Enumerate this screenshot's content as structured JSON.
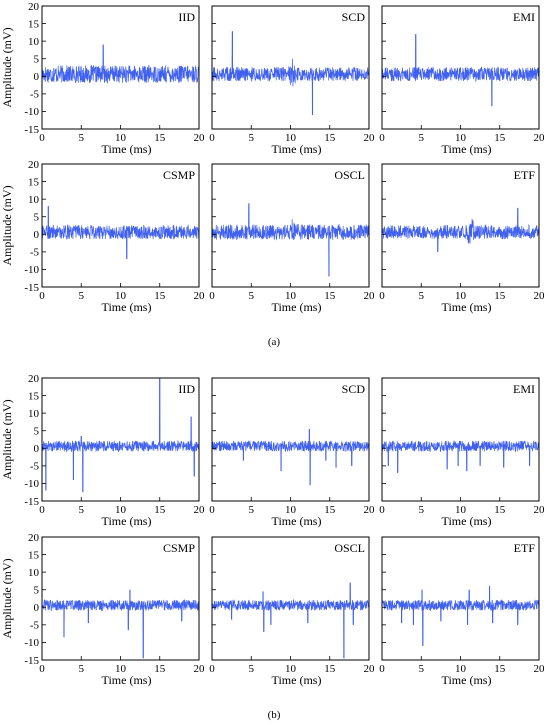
{
  "figure": {
    "sublabel_a": "(a)",
    "sublabel_b": "(b)"
  },
  "colors": {
    "signal": "#4060ee",
    "axis": "#000000"
  },
  "chart_data": [
    {
      "id": "a1",
      "group": "a",
      "type": "line",
      "panel_label": "IID",
      "xlabel": "Time (ms)",
      "ylabel": "Amplitude (mV)",
      "xlim": [
        0,
        20
      ],
      "ylim": [
        -15,
        20
      ],
      "xticks": [
        0,
        5,
        10,
        15,
        20
      ],
      "yticks": [
        -15,
        -10,
        -5,
        0,
        5,
        10,
        15,
        20
      ],
      "noise_amplitude": 2.5,
      "bump": null,
      "spikes": [
        {
          "x": 7.8,
          "y": 9.0
        }
      ]
    },
    {
      "id": "a2",
      "group": "a",
      "type": "line",
      "panel_label": "SCD",
      "xlabel": "Time (ms)",
      "ylabel": "",
      "xlim": [
        0,
        20
      ],
      "ylim": [
        -15,
        20
      ],
      "xticks": [
        0,
        5,
        10,
        15,
        20
      ],
      "yticks": [
        -15,
        -10,
        -5,
        0,
        5,
        10,
        15,
        20
      ],
      "noise_amplitude": 2.0,
      "bump": {
        "x": 10.2,
        "amplitude": 4.5
      },
      "spikes": [
        {
          "x": 2.6,
          "y": 12.8
        },
        {
          "x": 12.8,
          "y": -11.0
        }
      ]
    },
    {
      "id": "a3",
      "group": "a",
      "type": "line",
      "panel_label": "EMI",
      "xlabel": "Time (ms)",
      "ylabel": "",
      "xlim": [
        0,
        20
      ],
      "ylim": [
        -15,
        20
      ],
      "xticks": [
        0,
        5,
        10,
        15,
        20
      ],
      "yticks": [
        -15,
        -10,
        -5,
        0,
        5,
        10,
        15,
        20
      ],
      "noise_amplitude": 2.0,
      "bump": null,
      "spikes": [
        {
          "x": 4.3,
          "y": 12.0
        },
        {
          "x": 14.0,
          "y": -8.5
        }
      ]
    },
    {
      "id": "a4",
      "group": "a",
      "type": "line",
      "panel_label": "CSMP",
      "xlabel": "Time (ms)",
      "ylabel": "Amplitude (mV)",
      "xlim": [
        0,
        20
      ],
      "ylim": [
        -15,
        20
      ],
      "xticks": [
        0,
        5,
        10,
        15,
        20
      ],
      "yticks": [
        -15,
        -10,
        -5,
        0,
        5,
        10,
        15,
        20
      ],
      "noise_amplitude": 2.0,
      "bump": null,
      "spikes": [
        {
          "x": 0.8,
          "y": 8.0
        },
        {
          "x": 10.8,
          "y": -7.0
        }
      ]
    },
    {
      "id": "a5",
      "group": "a",
      "type": "line",
      "panel_label": "OSCL",
      "xlabel": "Time (ms)",
      "ylabel": "",
      "xlim": [
        0,
        20
      ],
      "ylim": [
        -15,
        20
      ],
      "xticks": [
        0,
        5,
        10,
        15,
        20
      ],
      "yticks": [
        -15,
        -10,
        -5,
        0,
        5,
        10,
        15,
        20
      ],
      "noise_amplitude": 2.2,
      "bump": {
        "x": 10.3,
        "amplitude": 2.0
      },
      "spikes": [
        {
          "x": 4.7,
          "y": 8.8
        },
        {
          "x": 14.9,
          "y": -12.0
        }
      ]
    },
    {
      "id": "a6",
      "group": "a",
      "type": "line",
      "panel_label": "ETF",
      "xlabel": "Time (ms)",
      "ylabel": "",
      "xlim": [
        0,
        20
      ],
      "ylim": [
        -15,
        20
      ],
      "xticks": [
        0,
        5,
        10,
        15,
        20
      ],
      "yticks": [
        -15,
        -10,
        -5,
        0,
        5,
        10,
        15,
        20
      ],
      "noise_amplitude": 2.0,
      "bump": {
        "x": 11.3,
        "amplitude": 3.0
      },
      "spikes": [
        {
          "x": 17.3,
          "y": 7.5
        },
        {
          "x": 7.1,
          "y": -5.0
        }
      ]
    },
    {
      "id": "b1",
      "group": "b",
      "type": "line",
      "panel_label": "IID",
      "xlabel": "Time (ms)",
      "ylabel": "Amplitude (mV)",
      "xlim": [
        0,
        20
      ],
      "ylim": [
        -15,
        20
      ],
      "xticks": [
        0,
        5,
        10,
        15,
        20
      ],
      "yticks": [
        -15,
        -10,
        -5,
        0,
        5,
        10,
        15,
        20
      ],
      "noise_amplitude": 1.5,
      "bump": null,
      "spikes": [
        {
          "x": 0.5,
          "y": -12.0
        },
        {
          "x": 4.0,
          "y": -9.0
        },
        {
          "x": 5.2,
          "y": -12.5
        },
        {
          "x": 5.0,
          "y": 3.5
        },
        {
          "x": 15.0,
          "y": 20.0
        },
        {
          "x": 19.0,
          "y": 9.0
        },
        {
          "x": 19.4,
          "y": -8.0
        }
      ]
    },
    {
      "id": "b2",
      "group": "b",
      "type": "line",
      "panel_label": "SCD",
      "xlabel": "Time (ms)",
      "ylabel": "",
      "xlim": [
        0,
        20
      ],
      "ylim": [
        -15,
        20
      ],
      "xticks": [
        0,
        5,
        10,
        15,
        20
      ],
      "yticks": [
        -15,
        -10,
        -5,
        0,
        5,
        10,
        15,
        20
      ],
      "noise_amplitude": 1.5,
      "bump": null,
      "spikes": [
        {
          "x": 4.0,
          "y": -3.5
        },
        {
          "x": 8.8,
          "y": -6.5
        },
        {
          "x": 12.4,
          "y": 5.5
        },
        {
          "x": 12.5,
          "y": -10.5
        },
        {
          "x": 14.5,
          "y": -3.5
        },
        {
          "x": 15.8,
          "y": -5.5
        },
        {
          "x": 17.8,
          "y": -5.0
        }
      ]
    },
    {
      "id": "b3",
      "group": "b",
      "type": "line",
      "panel_label": "EMI",
      "xlabel": "Time (ms)",
      "ylabel": "",
      "xlim": [
        0,
        20
      ],
      "ylim": [
        -15,
        20
      ],
      "xticks": [
        0,
        5,
        10,
        15,
        20
      ],
      "yticks": [
        -15,
        -10,
        -5,
        0,
        5,
        10,
        15,
        20
      ],
      "noise_amplitude": 1.5,
      "bump": null,
      "spikes": [
        {
          "x": 0.8,
          "y": -5.0
        },
        {
          "x": 2.0,
          "y": -7.0
        },
        {
          "x": 8.3,
          "y": -6.0
        },
        {
          "x": 9.7,
          "y": -5.0
        },
        {
          "x": 10.8,
          "y": -6.5
        },
        {
          "x": 12.5,
          "y": -5.0
        },
        {
          "x": 15.5,
          "y": -5.5
        },
        {
          "x": 18.8,
          "y": -5.0
        }
      ]
    },
    {
      "id": "b4",
      "group": "b",
      "type": "line",
      "panel_label": "CSMP",
      "xlabel": "Time (ms)",
      "ylabel": "Amplitude (mV)",
      "xlim": [
        0,
        20
      ],
      "ylim": [
        -15,
        20
      ],
      "xticks": [
        0,
        5,
        10,
        15,
        20
      ],
      "yticks": [
        -15,
        -10,
        -5,
        0,
        5,
        10,
        15,
        20
      ],
      "noise_amplitude": 1.5,
      "bump": null,
      "spikes": [
        {
          "x": 2.8,
          "y": -8.5
        },
        {
          "x": 5.9,
          "y": -4.5
        },
        {
          "x": 11.2,
          "y": 5.0
        },
        {
          "x": 11.0,
          "y": -6.5
        },
        {
          "x": 12.9,
          "y": -14.5
        },
        {
          "x": 17.8,
          "y": -4.0
        }
      ]
    },
    {
      "id": "b5",
      "group": "b",
      "type": "line",
      "panel_label": "OSCL",
      "xlabel": "Time (ms)",
      "ylabel": "",
      "xlim": [
        0,
        20
      ],
      "ylim": [
        -15,
        20
      ],
      "xticks": [
        0,
        5,
        10,
        15,
        20
      ],
      "yticks": [
        -15,
        -10,
        -5,
        0,
        5,
        10,
        15,
        20
      ],
      "noise_amplitude": 1.5,
      "bump": null,
      "spikes": [
        {
          "x": 2.5,
          "y": -3.5
        },
        {
          "x": 6.5,
          "y": 4.5
        },
        {
          "x": 6.6,
          "y": -7.0
        },
        {
          "x": 7.5,
          "y": -5.0
        },
        {
          "x": 12.2,
          "y": -4.5
        },
        {
          "x": 16.8,
          "y": -14.5
        },
        {
          "x": 17.6,
          "y": 7.0
        },
        {
          "x": 18.0,
          "y": -5.0
        }
      ]
    },
    {
      "id": "b6",
      "group": "b",
      "type": "line",
      "panel_label": "ETF",
      "xlabel": "Time (ms)",
      "ylabel": "",
      "xlim": [
        0,
        20
      ],
      "ylim": [
        -15,
        20
      ],
      "xticks": [
        0,
        5,
        10,
        15,
        20
      ],
      "yticks": [
        -15,
        -10,
        -5,
        0,
        5,
        10,
        15,
        20
      ],
      "noise_amplitude": 1.5,
      "bump": null,
      "spikes": [
        {
          "x": 2.5,
          "y": -4.5
        },
        {
          "x": 4.0,
          "y": -5.0
        },
        {
          "x": 5.1,
          "y": 5.0
        },
        {
          "x": 5.2,
          "y": -11.0
        },
        {
          "x": 7.5,
          "y": -4.0
        },
        {
          "x": 10.9,
          "y": -5.0
        },
        {
          "x": 11.1,
          "y": 5.0
        },
        {
          "x": 13.7,
          "y": 6.0
        },
        {
          "x": 14.1,
          "y": -4.5
        },
        {
          "x": 17.3,
          "y": -5.0
        }
      ]
    }
  ]
}
